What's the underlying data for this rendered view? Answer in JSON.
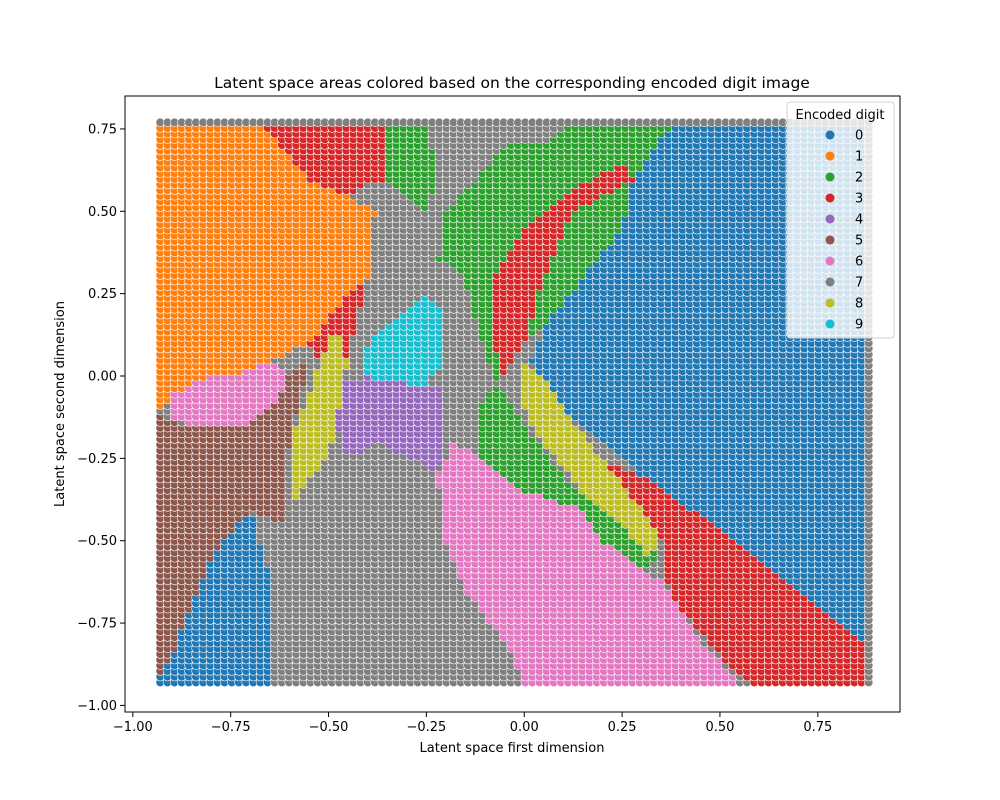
{
  "chart_data": {
    "type": "scatter",
    "title": "Latent space areas colored based on the corresponding encoded digit image",
    "xlabel": "Latent space first dimension",
    "ylabel": "Latent space second dimension",
    "xlim": [
      -1.02,
      0.96
    ],
    "ylim": [
      -1.02,
      0.85
    ],
    "xticks": [
      -1.0,
      -0.75,
      -0.5,
      -0.25,
      0.0,
      0.25,
      0.5,
      0.75
    ],
    "xtick_labels": [
      "−1.00",
      "−0.75",
      "−0.50",
      "−0.25",
      "0.00",
      "0.25",
      "0.50",
      "0.75"
    ],
    "yticks": [
      -1.0,
      -0.75,
      -0.5,
      -0.25,
      0.0,
      0.25,
      0.5,
      0.75
    ],
    "ytick_labels": [
      "−1.00",
      "−0.75",
      "−0.50",
      "−0.25",
      "0.00",
      "0.25",
      "0.50",
      "0.75"
    ],
    "grid": false,
    "legend": {
      "title": "Encoded digit",
      "placement": "top-right",
      "entries": [
        "0",
        "1",
        "2",
        "3",
        "4",
        "5",
        "6",
        "7",
        "8",
        "9"
      ]
    },
    "colors": [
      "#1f77b4",
      "#ff7f0e",
      "#2ca02c",
      "#d62728",
      "#9467bd",
      "#8c564b",
      "#e377c2",
      "#7f7f7f",
      "#bcbd22",
      "#17becf"
    ],
    "grid_sampling": {
      "x_range": [
        -0.93,
        0.88
      ],
      "y_range": [
        -0.93,
        0.77
      ],
      "points_per_axis": 100
    },
    "regions": [
      {
        "label": 1,
        "polygon": [
          [
            -0.93,
            0.77
          ],
          [
            -0.67,
            0.77
          ],
          [
            -0.55,
            0.6
          ],
          [
            -0.45,
            0.55
          ],
          [
            -0.38,
            0.5
          ],
          [
            -0.4,
            0.3
          ],
          [
            -0.45,
            0.25
          ],
          [
            -0.55,
            0.1
          ],
          [
            -0.65,
            0.05
          ],
          [
            -0.75,
            0.0
          ],
          [
            -0.85,
            -0.02
          ],
          [
            -0.93,
            -0.1
          ]
        ]
      },
      {
        "label": 3,
        "polygon": [
          [
            -0.67,
            0.77
          ],
          [
            -0.3,
            0.77
          ],
          [
            -0.35,
            0.6
          ],
          [
            -0.42,
            0.58
          ],
          [
            -0.45,
            0.55
          ],
          [
            -0.55,
            0.6
          ]
        ]
      },
      {
        "label": 3,
        "polygon": [
          [
            -0.4,
            0.3
          ],
          [
            -0.45,
            0.25
          ],
          [
            -0.55,
            0.1
          ],
          [
            -0.5,
            0.0
          ],
          [
            -0.45,
            0.05
          ],
          [
            -0.42,
            0.2
          ]
        ]
      },
      {
        "label": 2,
        "polygon": [
          [
            -0.35,
            0.77
          ],
          [
            -0.25,
            0.77
          ],
          [
            -0.22,
            0.6
          ],
          [
            -0.25,
            0.5
          ],
          [
            -0.3,
            0.55
          ],
          [
            -0.35,
            0.6
          ]
        ]
      },
      {
        "label": 7,
        "polygon": [
          [
            -0.38,
            0.5
          ],
          [
            -0.3,
            0.55
          ],
          [
            -0.25,
            0.5
          ],
          [
            -0.18,
            0.6
          ],
          [
            -0.12,
            0.77
          ],
          [
            -0.05,
            0.77
          ],
          [
            -0.12,
            0.7
          ],
          [
            -0.2,
            0.5
          ],
          [
            -0.22,
            0.35
          ],
          [
            -0.2,
            0.2
          ],
          [
            -0.25,
            0.1
          ],
          [
            -0.35,
            0.0
          ],
          [
            -0.42,
            0.2
          ],
          [
            -0.4,
            0.3
          ]
        ]
      },
      {
        "label": 2,
        "polygon": [
          [
            -0.2,
            0.5
          ],
          [
            -0.12,
            0.6
          ],
          [
            -0.05,
            0.7
          ],
          [
            0.08,
            0.72
          ],
          [
            0.12,
            0.77
          ],
          [
            0.25,
            0.77
          ],
          [
            0.32,
            0.77
          ],
          [
            0.38,
            0.77
          ],
          [
            0.28,
            0.6
          ],
          [
            0.25,
            0.45
          ],
          [
            0.1,
            0.2
          ],
          [
            0.0,
            0.1
          ],
          [
            -0.05,
            0.0
          ],
          [
            -0.1,
            -0.05
          ],
          [
            -0.12,
            -0.15
          ],
          [
            -0.1,
            -0.3
          ],
          [
            0.0,
            -0.35
          ],
          [
            0.15,
            -0.4
          ],
          [
            0.2,
            -0.5
          ],
          [
            0.3,
            -0.58
          ],
          [
            0.35,
            -0.55
          ],
          [
            0.3,
            -0.5
          ],
          [
            0.2,
            -0.4
          ],
          [
            0.1,
            -0.3
          ],
          [
            0.0,
            -0.15
          ],
          [
            -0.08,
            0.0
          ],
          [
            -0.12,
            0.15
          ],
          [
            -0.15,
            0.3
          ],
          [
            -0.2,
            0.35
          ],
          [
            -0.22,
            0.35
          ]
        ]
      },
      {
        "label": 7,
        "polygon": [
          [
            -0.05,
            0.77
          ],
          [
            0.12,
            0.77
          ],
          [
            0.08,
            0.72
          ],
          [
            -0.05,
            0.7
          ],
          [
            -0.12,
            0.7
          ]
        ]
      },
      {
        "label": 3,
        "polygon": [
          [
            -0.08,
            0.3
          ],
          [
            0.0,
            0.45
          ],
          [
            0.1,
            0.55
          ],
          [
            0.25,
            0.65
          ],
          [
            0.28,
            0.6
          ],
          [
            0.12,
            0.5
          ],
          [
            0.05,
            0.3
          ],
          [
            0.0,
            0.1
          ],
          [
            -0.05,
            0.0
          ],
          [
            -0.08,
            0.1
          ]
        ]
      },
      {
        "label": 0,
        "polygon": [
          [
            0.38,
            0.77
          ],
          [
            0.88,
            0.77
          ],
          [
            0.88,
            -0.82
          ],
          [
            0.55,
            -0.5
          ],
          [
            0.3,
            -0.3
          ],
          [
            0.1,
            -0.1
          ],
          [
            0.02,
            0.05
          ],
          [
            0.05,
            0.15
          ],
          [
            0.15,
            0.3
          ],
          [
            0.25,
            0.45
          ],
          [
            0.28,
            0.6
          ]
        ]
      },
      {
        "label": 9,
        "polygon": [
          [
            -0.4,
            0.1
          ],
          [
            -0.3,
            0.2
          ],
          [
            -0.25,
            0.25
          ],
          [
            -0.2,
            0.2
          ],
          [
            -0.2,
            0.05
          ],
          [
            -0.25,
            -0.02
          ],
          [
            -0.35,
            -0.02
          ],
          [
            -0.4,
            0.0
          ]
        ]
      },
      {
        "label": 4,
        "polygon": [
          [
            -0.48,
            -0.02
          ],
          [
            -0.4,
            0.0
          ],
          [
            -0.3,
            -0.02
          ],
          [
            -0.2,
            -0.02
          ],
          [
            -0.2,
            -0.15
          ],
          [
            -0.22,
            -0.3
          ],
          [
            -0.28,
            -0.25
          ],
          [
            -0.38,
            -0.2
          ],
          [
            -0.45,
            -0.25
          ],
          [
            -0.48,
            -0.15
          ]
        ]
      },
      {
        "label": 8,
        "polygon": [
          [
            -0.6,
            -0.2
          ],
          [
            -0.55,
            -0.05
          ],
          [
            -0.5,
            0.1
          ],
          [
            -0.48,
            0.15
          ],
          [
            -0.45,
            0.05
          ],
          [
            -0.48,
            -0.15
          ],
          [
            -0.5,
            -0.25
          ],
          [
            -0.55,
            -0.3
          ],
          [
            -0.62,
            -0.45
          ],
          [
            -0.65,
            -0.6
          ],
          [
            -0.67,
            -0.75
          ],
          [
            -0.65,
            -0.8
          ],
          [
            -0.62,
            -0.7
          ],
          [
            -0.6,
            -0.5
          ],
          [
            -0.58,
            -0.4
          ]
        ]
      },
      {
        "label": 6,
        "polygon": [
          [
            -0.9,
            -0.05
          ],
          [
            -0.8,
            0.0
          ],
          [
            -0.7,
            0.02
          ],
          [
            -0.65,
            0.05
          ],
          [
            -0.6,
            0.0
          ],
          [
            -0.65,
            -0.1
          ],
          [
            -0.72,
            -0.15
          ],
          [
            -0.85,
            -0.15
          ],
          [
            -0.9,
            -0.12
          ]
        ]
      },
      {
        "label": 5,
        "polygon": [
          [
            -0.93,
            -0.12
          ],
          [
            -0.85,
            -0.15
          ],
          [
            -0.72,
            -0.15
          ],
          [
            -0.65,
            -0.1
          ],
          [
            -0.6,
            0.0
          ],
          [
            -0.55,
            0.05
          ],
          [
            -0.6,
            -0.2
          ],
          [
            -0.62,
            -0.45
          ],
          [
            -0.7,
            -0.4
          ],
          [
            -0.8,
            -0.55
          ],
          [
            -0.9,
            -0.85
          ],
          [
            -0.93,
            -0.9
          ]
        ]
      },
      {
        "label": 0,
        "polygon": [
          [
            -0.93,
            -0.9
          ],
          [
            -0.9,
            -0.85
          ],
          [
            -0.8,
            -0.55
          ],
          [
            -0.7,
            -0.4
          ],
          [
            -0.65,
            -0.6
          ],
          [
            -0.65,
            -0.93
          ],
          [
            -0.93,
            -0.93
          ]
        ]
      },
      {
        "label": 7,
        "polygon": [
          [
            -0.62,
            -0.45
          ],
          [
            -0.55,
            -0.3
          ],
          [
            -0.5,
            -0.25
          ],
          [
            -0.45,
            -0.25
          ],
          [
            -0.38,
            -0.2
          ],
          [
            -0.28,
            -0.25
          ],
          [
            -0.22,
            -0.3
          ],
          [
            -0.2,
            -0.5
          ],
          [
            -0.15,
            -0.65
          ],
          [
            -0.05,
            -0.8
          ],
          [
            0.0,
            -0.93
          ],
          [
            -0.65,
            -0.93
          ],
          [
            -0.65,
            -0.6
          ]
        ]
      },
      {
        "label": 6,
        "polygon": [
          [
            -0.22,
            -0.3
          ],
          [
            -0.18,
            -0.2
          ],
          [
            -0.1,
            -0.25
          ],
          [
            0.0,
            -0.35
          ],
          [
            0.15,
            -0.4
          ],
          [
            0.2,
            -0.5
          ],
          [
            0.3,
            -0.58
          ],
          [
            0.35,
            -0.62
          ],
          [
            0.45,
            -0.8
          ],
          [
            0.55,
            -0.93
          ],
          [
            0.0,
            -0.93
          ],
          [
            -0.05,
            -0.8
          ],
          [
            -0.15,
            -0.65
          ],
          [
            -0.2,
            -0.5
          ]
        ]
      },
      {
        "label": 8,
        "polygon": [
          [
            0.0,
            0.05
          ],
          [
            0.05,
            0.0
          ],
          [
            0.1,
            -0.1
          ],
          [
            0.2,
            -0.25
          ],
          [
            0.3,
            -0.4
          ],
          [
            0.35,
            -0.5
          ],
          [
            0.32,
            -0.55
          ],
          [
            0.25,
            -0.45
          ],
          [
            0.15,
            -0.35
          ],
          [
            0.05,
            -0.2
          ],
          [
            0.0,
            -0.1
          ]
        ]
      },
      {
        "label": 3,
        "polygon": [
          [
            0.2,
            -0.25
          ],
          [
            0.3,
            -0.3
          ],
          [
            0.55,
            -0.5
          ],
          [
            0.88,
            -0.82
          ],
          [
            0.88,
            -0.93
          ],
          [
            0.58,
            -0.93
          ],
          [
            0.5,
            -0.85
          ],
          [
            0.4,
            -0.7
          ],
          [
            0.35,
            -0.6
          ],
          [
            0.35,
            -0.5
          ],
          [
            0.3,
            -0.4
          ]
        ]
      }
    ]
  }
}
